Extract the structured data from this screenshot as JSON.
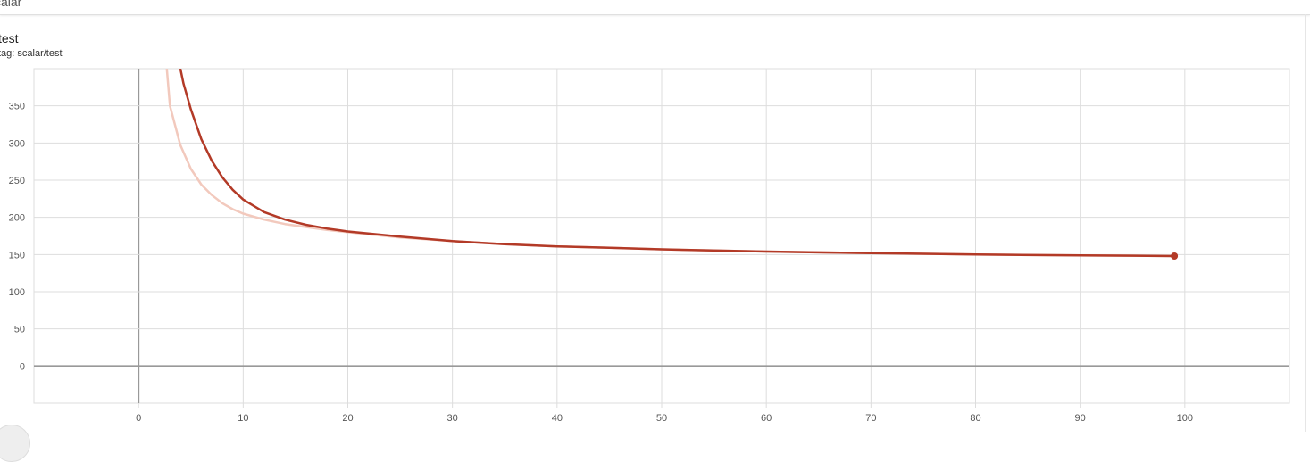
{
  "header": {
    "section_title": "calar",
    "collapse_icon": "chevron-up-icon"
  },
  "card": {
    "title": "test",
    "subtitle": "tag: scalar/test"
  },
  "colors": {
    "smoothed": "#b33a27",
    "raw": "#f2c9bd",
    "grid": "#dddddd",
    "axis": "#999999"
  },
  "chart_data": {
    "type": "line",
    "title": "test",
    "xlabel": "",
    "ylabel": "",
    "xlim": [
      -10,
      110
    ],
    "ylim": [
      -50,
      400
    ],
    "x_ticks": [
      0,
      10,
      20,
      30,
      40,
      50,
      60,
      70,
      80,
      90,
      100
    ],
    "y_ticks": [
      0,
      50,
      100,
      150,
      200,
      250,
      300,
      350
    ],
    "grid": true,
    "legend": "none",
    "series": [
      {
        "role": "raw",
        "x": [
          2.7,
          3,
          4,
          5,
          6,
          7,
          8,
          9,
          10,
          12,
          14,
          16,
          18,
          20,
          25,
          30,
          35,
          40,
          45,
          50,
          60,
          70,
          80,
          90,
          99
        ],
        "y": [
          400,
          350,
          297,
          265,
          244,
          230,
          219,
          211,
          205,
          197,
          191,
          187,
          183,
          180,
          173,
          168,
          164,
          161,
          159,
          157,
          154,
          152,
          150,
          149,
          148
        ]
      },
      {
        "role": "smoothed",
        "x": [
          4.0,
          4.3,
          5,
          6,
          7,
          8,
          9,
          10,
          12,
          14,
          16,
          18,
          20,
          25,
          30,
          35,
          40,
          45,
          50,
          60,
          70,
          80,
          90,
          99
        ],
        "y": [
          400,
          380,
          345,
          305,
          276,
          254,
          237,
          224,
          207,
          197,
          190,
          185,
          181,
          174,
          168,
          164,
          161,
          159,
          157,
          154,
          152,
          150,
          149,
          148
        ]
      }
    ],
    "last_point": {
      "x": 99,
      "y": 148
    }
  }
}
